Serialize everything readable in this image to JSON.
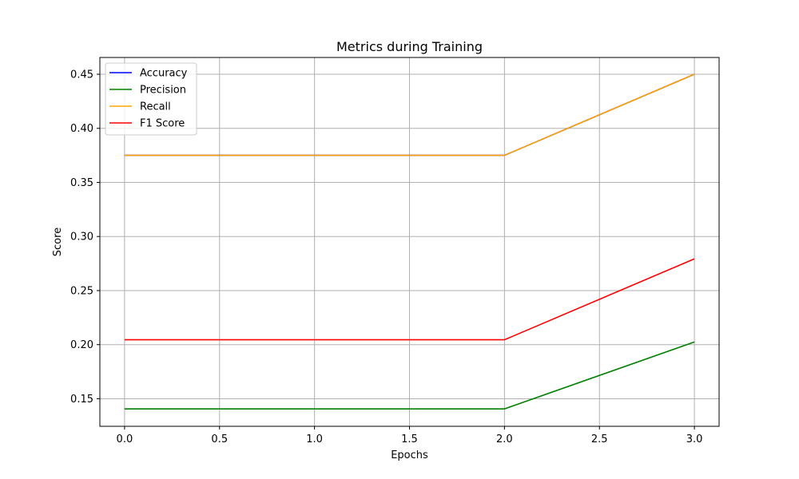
{
  "chart_data": {
    "type": "line",
    "title": "Metrics during Training",
    "xlabel": "Epochs",
    "ylabel": "Score",
    "xlim": [
      -0.13,
      3.13
    ],
    "ylim": [
      0.1245,
      0.4655
    ],
    "xticks": [
      0.0,
      0.5,
      1.0,
      1.5,
      2.0,
      2.5,
      3.0
    ],
    "xtick_labels": [
      "0.0",
      "0.5",
      "1.0",
      "1.5",
      "2.0",
      "2.5",
      "3.0"
    ],
    "yticks": [
      0.15,
      0.2,
      0.25,
      0.3,
      0.35,
      0.4,
      0.45
    ],
    "ytick_labels": [
      "0.15",
      "0.20",
      "0.25",
      "0.30",
      "0.35",
      "0.40",
      "0.45"
    ],
    "grid": true,
    "legend_position": "top-left",
    "x": [
      0,
      1,
      2,
      3
    ],
    "series": [
      {
        "name": "Accuracy",
        "color": "#0000ff",
        "values": [
          0.375,
          0.375,
          0.375,
          0.45
        ]
      },
      {
        "name": "Precision",
        "color": "#008000",
        "values": [
          0.1406,
          0.1406,
          0.1406,
          0.2025
        ]
      },
      {
        "name": "Recall",
        "color": "#ffa500",
        "values": [
          0.375,
          0.375,
          0.375,
          0.45
        ]
      },
      {
        "name": "F1 Score",
        "color": "#ff0000",
        "values": [
          0.2045,
          0.2045,
          0.2045,
          0.2793
        ]
      }
    ]
  }
}
